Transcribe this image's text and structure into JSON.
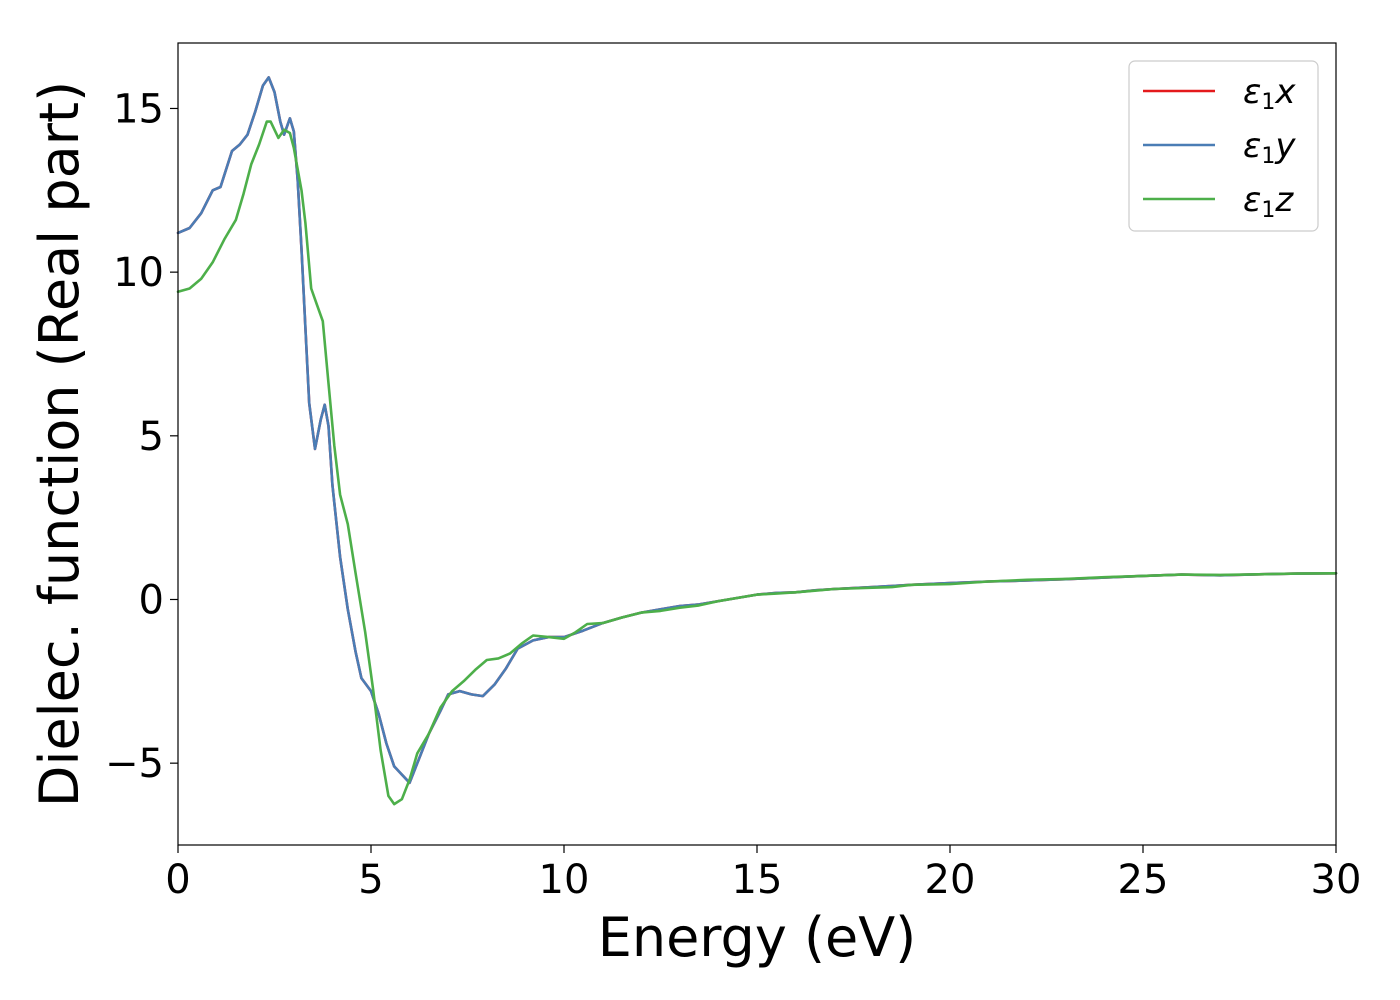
{
  "chart_data": {
    "type": "line",
    "title": "",
    "xlabel": "Energy (eV)",
    "ylabel": "Dielec. function (Real part)",
    "xlim": [
      0,
      30
    ],
    "ylim": [
      -7.5,
      17.0
    ],
    "xticks": [
      0,
      5,
      10,
      15,
      20,
      25,
      30
    ],
    "xtick_labels": [
      "0",
      "5",
      "10",
      "15",
      "20",
      "25",
      "30"
    ],
    "yticks": [
      -5,
      0,
      5,
      10,
      15
    ],
    "ytick_labels": [
      "−5",
      "0",
      "5",
      "10",
      "15"
    ],
    "grid": false,
    "legend_position": "top-right",
    "series": [
      {
        "name": "ε₁x",
        "legend": {
          "base": "ε",
          "sub": "1",
          "var": "x"
        },
        "color": "#e41a1c",
        "points": [
          [
            0,
            11.2
          ],
          [
            0.3,
            11.35
          ],
          [
            0.6,
            11.8
          ],
          [
            0.9,
            12.5
          ],
          [
            1.1,
            12.6
          ],
          [
            1.4,
            13.7
          ],
          [
            1.6,
            13.9
          ],
          [
            1.8,
            14.2
          ],
          [
            2.0,
            14.9
          ],
          [
            2.2,
            15.7
          ],
          [
            2.35,
            15.95
          ],
          [
            2.5,
            15.5
          ],
          [
            2.65,
            14.6
          ],
          [
            2.75,
            14.2
          ],
          [
            2.9,
            14.7
          ],
          [
            3.0,
            14.3
          ],
          [
            3.1,
            12.8
          ],
          [
            3.2,
            10.7
          ],
          [
            3.3,
            8.3
          ],
          [
            3.4,
            6.0
          ],
          [
            3.55,
            4.6
          ],
          [
            3.7,
            5.5
          ],
          [
            3.8,
            5.95
          ],
          [
            3.9,
            5.3
          ],
          [
            4.0,
            3.5
          ],
          [
            4.2,
            1.3
          ],
          [
            4.4,
            -0.3
          ],
          [
            4.6,
            -1.6
          ],
          [
            4.75,
            -2.4
          ],
          [
            5.0,
            -2.8
          ],
          [
            5.2,
            -3.5
          ],
          [
            5.4,
            -4.4
          ],
          [
            5.6,
            -5.1
          ],
          [
            5.8,
            -5.35
          ],
          [
            6.0,
            -5.6
          ],
          [
            6.2,
            -5.0
          ],
          [
            6.5,
            -4.1
          ],
          [
            6.8,
            -3.4
          ],
          [
            7.0,
            -2.9
          ],
          [
            7.3,
            -2.8
          ],
          [
            7.6,
            -2.9
          ],
          [
            7.9,
            -2.95
          ],
          [
            8.2,
            -2.6
          ],
          [
            8.5,
            -2.1
          ],
          [
            8.8,
            -1.5
          ],
          [
            9.2,
            -1.25
          ],
          [
            9.6,
            -1.15
          ],
          [
            10.0,
            -1.15
          ],
          [
            10.5,
            -0.95
          ],
          [
            11.0,
            -0.72
          ],
          [
            11.5,
            -0.55
          ],
          [
            12.0,
            -0.4
          ],
          [
            12.5,
            -0.3
          ],
          [
            13.0,
            -0.2
          ],
          [
            13.5,
            -0.15
          ],
          [
            14.0,
            -0.05
          ],
          [
            14.5,
            0.05
          ],
          [
            15.0,
            0.15
          ],
          [
            15.5,
            0.2
          ],
          [
            16.0,
            0.22
          ],
          [
            16.5,
            0.28
          ],
          [
            17.0,
            0.32
          ],
          [
            18.0,
            0.38
          ],
          [
            19.0,
            0.45
          ],
          [
            20.0,
            0.5
          ],
          [
            21.0,
            0.55
          ],
          [
            22.0,
            0.58
          ],
          [
            23.0,
            0.62
          ],
          [
            24.0,
            0.67
          ],
          [
            25.0,
            0.72
          ],
          [
            26.0,
            0.76
          ],
          [
            27.0,
            0.74
          ],
          [
            28.0,
            0.77
          ],
          [
            29.0,
            0.79
          ],
          [
            30.0,
            0.8
          ]
        ]
      },
      {
        "name": "ε₁y",
        "legend": {
          "base": "ε",
          "sub": "1",
          "var": "y"
        },
        "color": "#4a7db5",
        "points": [
          [
            0,
            11.2
          ],
          [
            0.3,
            11.35
          ],
          [
            0.6,
            11.8
          ],
          [
            0.9,
            12.5
          ],
          [
            1.1,
            12.6
          ],
          [
            1.4,
            13.7
          ],
          [
            1.6,
            13.9
          ],
          [
            1.8,
            14.2
          ],
          [
            2.0,
            14.9
          ],
          [
            2.2,
            15.7
          ],
          [
            2.35,
            15.95
          ],
          [
            2.5,
            15.5
          ],
          [
            2.65,
            14.6
          ],
          [
            2.75,
            14.2
          ],
          [
            2.9,
            14.7
          ],
          [
            3.0,
            14.3
          ],
          [
            3.1,
            12.8
          ],
          [
            3.2,
            10.7
          ],
          [
            3.3,
            8.3
          ],
          [
            3.4,
            6.0
          ],
          [
            3.55,
            4.6
          ],
          [
            3.7,
            5.5
          ],
          [
            3.8,
            5.95
          ],
          [
            3.9,
            5.3
          ],
          [
            4.0,
            3.5
          ],
          [
            4.2,
            1.3
          ],
          [
            4.4,
            -0.3
          ],
          [
            4.6,
            -1.6
          ],
          [
            4.75,
            -2.4
          ],
          [
            5.0,
            -2.8
          ],
          [
            5.2,
            -3.5
          ],
          [
            5.4,
            -4.4
          ],
          [
            5.6,
            -5.1
          ],
          [
            5.8,
            -5.35
          ],
          [
            6.0,
            -5.6
          ],
          [
            6.2,
            -5.0
          ],
          [
            6.5,
            -4.1
          ],
          [
            6.8,
            -3.4
          ],
          [
            7.0,
            -2.9
          ],
          [
            7.3,
            -2.8
          ],
          [
            7.6,
            -2.9
          ],
          [
            7.9,
            -2.95
          ],
          [
            8.2,
            -2.6
          ],
          [
            8.5,
            -2.1
          ],
          [
            8.8,
            -1.5
          ],
          [
            9.2,
            -1.25
          ],
          [
            9.6,
            -1.15
          ],
          [
            10.0,
            -1.15
          ],
          [
            10.5,
            -0.95
          ],
          [
            11.0,
            -0.72
          ],
          [
            11.5,
            -0.55
          ],
          [
            12.0,
            -0.4
          ],
          [
            12.5,
            -0.3
          ],
          [
            13.0,
            -0.2
          ],
          [
            13.5,
            -0.15
          ],
          [
            14.0,
            -0.05
          ],
          [
            14.5,
            0.05
          ],
          [
            15.0,
            0.15
          ],
          [
            15.5,
            0.2
          ],
          [
            16.0,
            0.22
          ],
          [
            16.5,
            0.28
          ],
          [
            17.0,
            0.32
          ],
          [
            18.0,
            0.38
          ],
          [
            19.0,
            0.45
          ],
          [
            20.0,
            0.5
          ],
          [
            21.0,
            0.55
          ],
          [
            22.0,
            0.58
          ],
          [
            23.0,
            0.62
          ],
          [
            24.0,
            0.67
          ],
          [
            25.0,
            0.72
          ],
          [
            26.0,
            0.76
          ],
          [
            27.0,
            0.74
          ],
          [
            28.0,
            0.77
          ],
          [
            29.0,
            0.79
          ],
          [
            30.0,
            0.8
          ]
        ]
      },
      {
        "name": "ε₁z",
        "legend": {
          "base": "ε",
          "sub": "1",
          "var": "z"
        },
        "color": "#4daf4a",
        "points": [
          [
            0,
            9.4
          ],
          [
            0.3,
            9.5
          ],
          [
            0.6,
            9.8
          ],
          [
            0.9,
            10.3
          ],
          [
            1.2,
            11.0
          ],
          [
            1.5,
            11.6
          ],
          [
            1.7,
            12.4
          ],
          [
            1.9,
            13.3
          ],
          [
            2.1,
            13.9
          ],
          [
            2.3,
            14.6
          ],
          [
            2.4,
            14.6
          ],
          [
            2.6,
            14.1
          ],
          [
            2.75,
            14.35
          ],
          [
            2.9,
            14.25
          ],
          [
            3.0,
            13.8
          ],
          [
            3.2,
            12.5
          ],
          [
            3.3,
            11.5
          ],
          [
            3.45,
            9.5
          ],
          [
            3.6,
            9.0
          ],
          [
            3.75,
            8.5
          ],
          [
            3.9,
            6.6
          ],
          [
            4.05,
            4.7
          ],
          [
            4.2,
            3.2
          ],
          [
            4.4,
            2.3
          ],
          [
            4.6,
            0.8
          ],
          [
            4.85,
            -1.0
          ],
          [
            5.05,
            -2.7
          ],
          [
            5.25,
            -4.6
          ],
          [
            5.45,
            -6.0
          ],
          [
            5.6,
            -6.25
          ],
          [
            5.8,
            -6.1
          ],
          [
            6.0,
            -5.5
          ],
          [
            6.2,
            -4.7
          ],
          [
            6.5,
            -4.1
          ],
          [
            6.8,
            -3.3
          ],
          [
            7.1,
            -2.8
          ],
          [
            7.4,
            -2.5
          ],
          [
            7.7,
            -2.15
          ],
          [
            8.0,
            -1.85
          ],
          [
            8.3,
            -1.8
          ],
          [
            8.6,
            -1.65
          ],
          [
            8.9,
            -1.35
          ],
          [
            9.2,
            -1.1
          ],
          [
            9.6,
            -1.15
          ],
          [
            10.0,
            -1.2
          ],
          [
            10.3,
            -1.0
          ],
          [
            10.6,
            -0.75
          ],
          [
            11.0,
            -0.72
          ],
          [
            11.5,
            -0.55
          ],
          [
            12.0,
            -0.4
          ],
          [
            12.5,
            -0.35
          ],
          [
            13.0,
            -0.25
          ],
          [
            13.5,
            -0.18
          ],
          [
            14.0,
            -0.05
          ],
          [
            14.5,
            0.05
          ],
          [
            15.0,
            0.15
          ],
          [
            15.5,
            0.18
          ],
          [
            16.0,
            0.22
          ],
          [
            16.5,
            0.27
          ],
          [
            17.0,
            0.32
          ],
          [
            18.0,
            0.36
          ],
          [
            18.5,
            0.38
          ],
          [
            19.0,
            0.45
          ],
          [
            20.0,
            0.47
          ],
          [
            21.0,
            0.55
          ],
          [
            22.0,
            0.6
          ],
          [
            23.0,
            0.63
          ],
          [
            24.0,
            0.68
          ],
          [
            25.0,
            0.72
          ],
          [
            26.0,
            0.76
          ],
          [
            27.0,
            0.75
          ],
          [
            28.0,
            0.77
          ],
          [
            29.0,
            0.79
          ],
          [
            30.0,
            0.8
          ]
        ]
      }
    ]
  }
}
